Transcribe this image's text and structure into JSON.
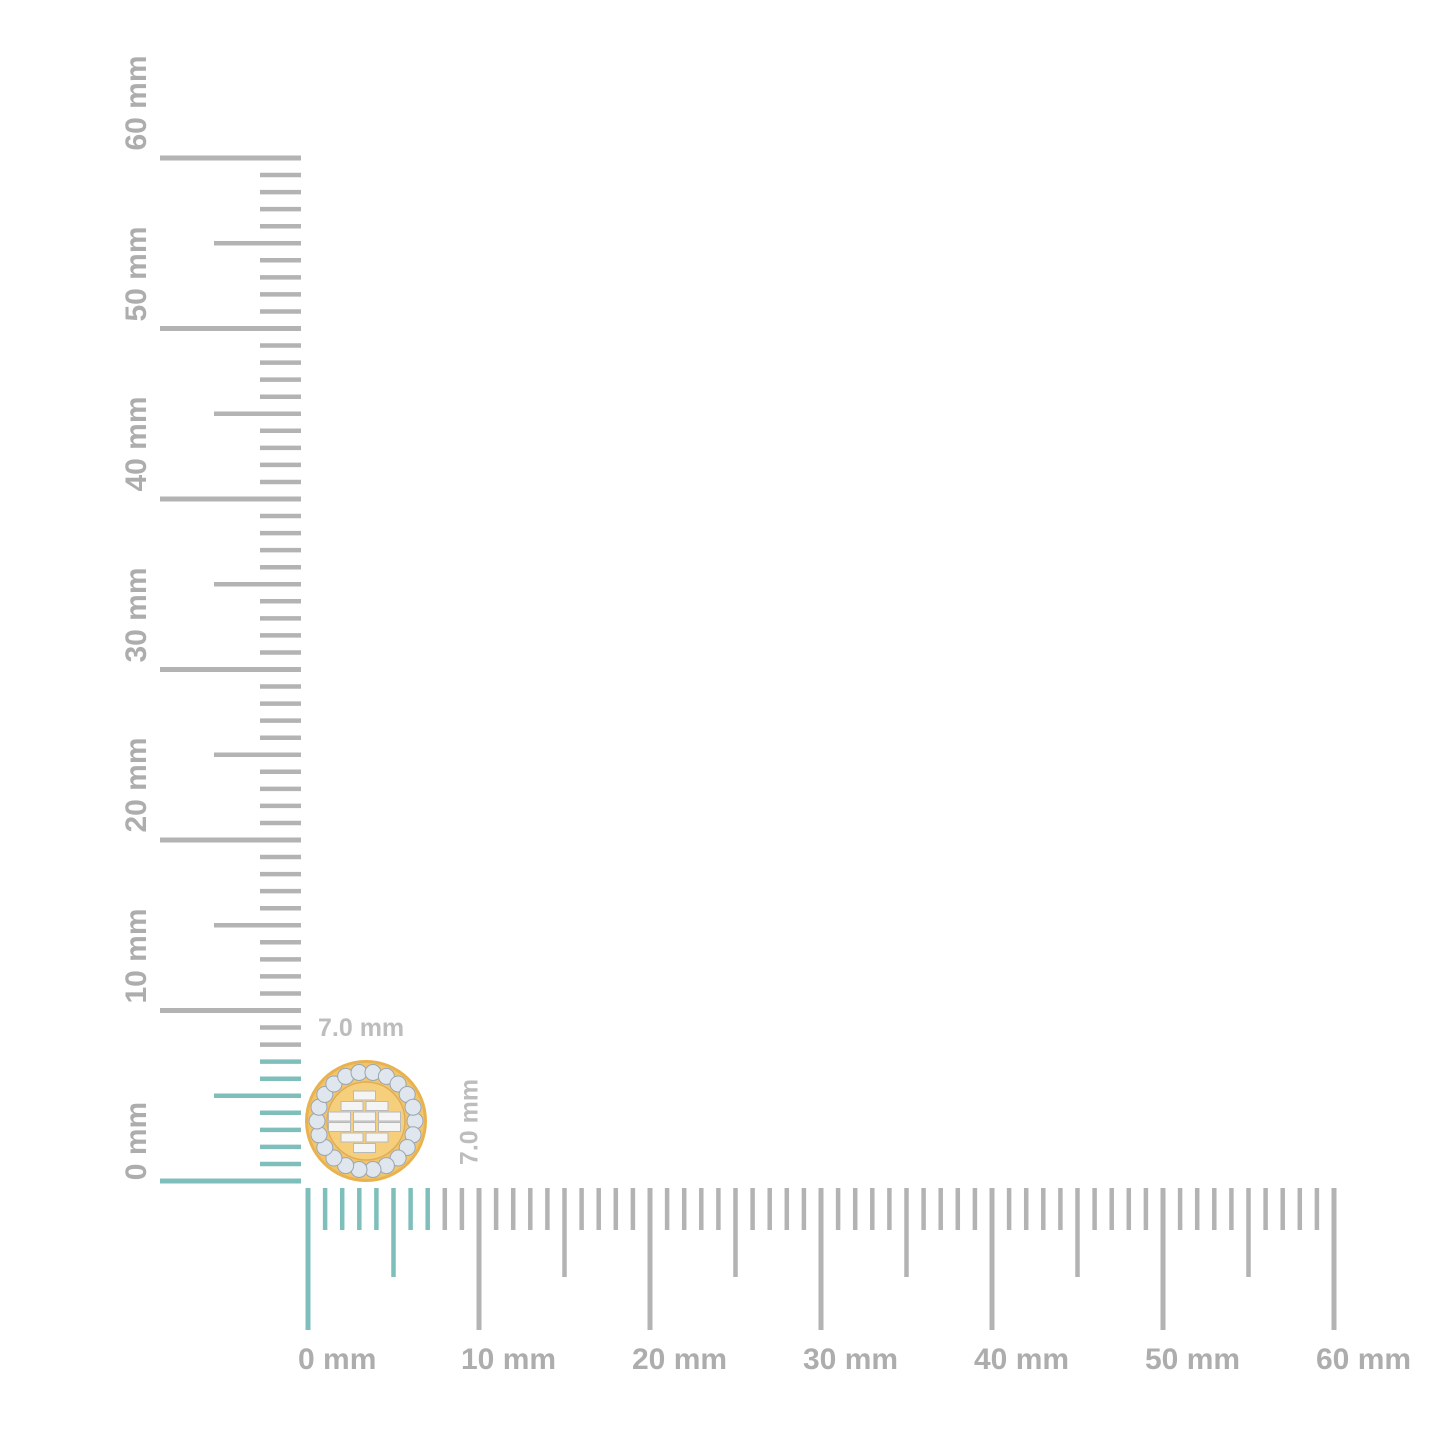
{
  "ruler": {
    "unit": "mm",
    "max_mm": 60,
    "highlight_mm": 7,
    "colors": {
      "tick": "#b3b3b3",
      "highlight": "#7fbfbb",
      "label": "#adadad",
      "gold": "#f2c56a",
      "diamond": "#dfe6ee"
    },
    "x_labels": [
      "0 mm",
      "10 mm",
      "20 mm",
      "30 mm",
      "40 mm",
      "50 mm",
      "60 mm"
    ],
    "y_labels": [
      "0 mm",
      "10 mm",
      "20 mm",
      "30 mm",
      "40 mm",
      "50 mm",
      "60 mm"
    ]
  },
  "product": {
    "name_icon": "round-halo-baguette-stud-earring",
    "width_label": "7.0 mm",
    "height_label": "7.0 mm"
  }
}
